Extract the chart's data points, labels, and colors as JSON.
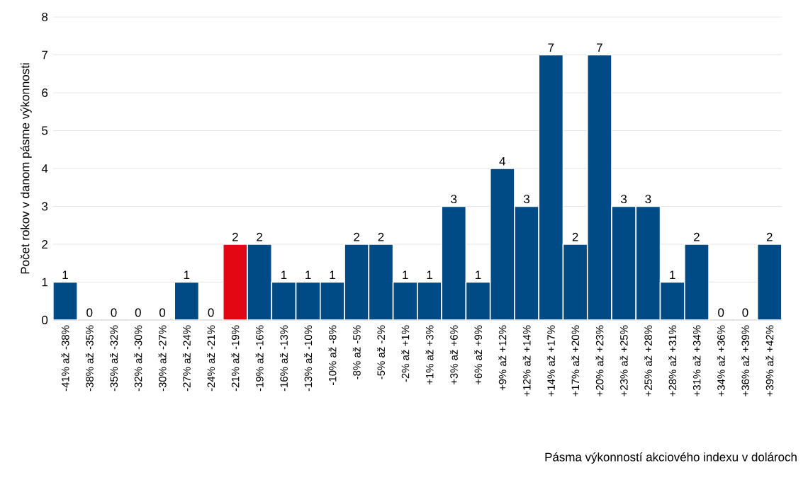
{
  "chart_data": {
    "type": "bar",
    "xlabel": "Pásma výkonností akciového indexu v dolároch",
    "ylabel": "Počet rokov v danom pásme výkonnosti",
    "categories": [
      "-41% až -38%",
      "-38% až -35%",
      "-35% až -32%",
      "-32% až -30%",
      "-30% až -27%",
      "-27% až -24%",
      "-24% až -21%",
      "-21% až -19%",
      "-19% až -16%",
      "-16% až -13%",
      "-13% až -10%",
      "-10% až -8%",
      "-8% až -5%",
      "-5% až -2%",
      "-2% až +1%",
      "+1% až +3%",
      "+3% až +6%",
      "+6% až +9%",
      "+9% až +12%",
      "+12% až +14%",
      "+14% až +17%",
      "+17% až +20%",
      "+20% až +23%",
      "+23% až +25%",
      "+25% až +28%",
      "+28% až +31%",
      "+31% až +34%",
      "+34% až +36%",
      "+36% až +39%",
      "+39% až +42%"
    ],
    "values": [
      1,
      0,
      0,
      0,
      0,
      1,
      0,
      2,
      2,
      1,
      1,
      1,
      2,
      2,
      1,
      1,
      3,
      1,
      4,
      3,
      7,
      2,
      7,
      3,
      3,
      1,
      2,
      0,
      0,
      2
    ],
    "colors": [
      "#004a85",
      "#004a85",
      "#004a85",
      "#004a85",
      "#004a85",
      "#004a85",
      "#004a85",
      "#e30613",
      "#004a85",
      "#004a85",
      "#004a85",
      "#004a85",
      "#004a85",
      "#004a85",
      "#004a85",
      "#004a85",
      "#004a85",
      "#004a85",
      "#004a85",
      "#004a85",
      "#004a85",
      "#004a85",
      "#004a85",
      "#004a85",
      "#004a85",
      "#004a85",
      "#004a85",
      "#004a85",
      "#004a85",
      "#004a85"
    ],
    "ylim": [
      0,
      8
    ],
    "yticks": [
      0,
      1,
      2,
      3,
      4,
      5,
      6,
      7,
      8
    ],
    "grid": "y",
    "data_labels": true
  }
}
